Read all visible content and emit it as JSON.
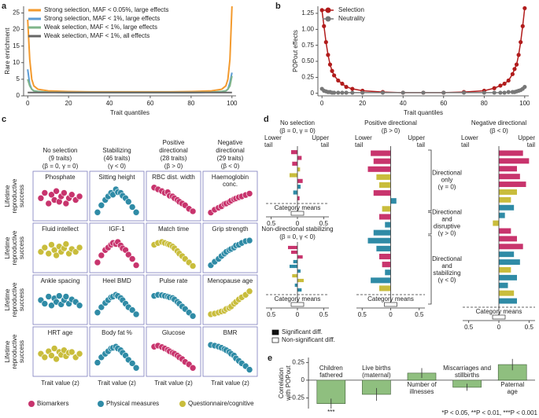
{
  "chart_data": [
    {
      "type": "line",
      "label": "a",
      "x_label": "Trait quantiles",
      "y_label": "Rare enrichment",
      "xlim": [
        -2,
        102
      ],
      "ylim": [
        0,
        27
      ],
      "xticks": [
        0,
        20,
        40,
        60,
        80,
        100
      ],
      "yticks": [
        0,
        5,
        10,
        15,
        20,
        25
      ],
      "legend": "upper left",
      "x": [
        0,
        1,
        2,
        3,
        5,
        10,
        20,
        30,
        40,
        50,
        60,
        70,
        80,
        90,
        95,
        97,
        98,
        99,
        100
      ],
      "series": [
        {
          "name": "Strong selection, MAF < 0.05%, large effects",
          "color": "#f39a2e",
          "values": [
            23,
            11,
            5,
            3,
            2,
            1.5,
            1.3,
            1.2,
            1.2,
            1.2,
            1.2,
            1.2,
            1.3,
            1.5,
            2,
            3,
            5,
            11,
            27
          ]
        },
        {
          "name": "Strong selection, MAF < 1%, large effects",
          "color": "#5b9bd5",
          "values": [
            8,
            3.5,
            2,
            1.5,
            1.3,
            1.1,
            1,
            1,
            1,
            1,
            1,
            1,
            1,
            1.1,
            1.3,
            1.5,
            2,
            4,
            7
          ]
        },
        {
          "name": "Weak selection, MAF < 1%, large effects",
          "color": "#7fb58a",
          "values": [
            5,
            3,
            2,
            1.5,
            1.3,
            1.1,
            1,
            1,
            1,
            1,
            1,
            1,
            1,
            1.1,
            1.3,
            1.5,
            2,
            3,
            6
          ]
        },
        {
          "name": "Weak selection, MAF < 1%, all effects",
          "color": "#666666",
          "values": [
            1,
            1,
            1,
            1,
            1,
            1,
            1,
            1,
            1,
            1,
            1,
            1,
            1,
            1,
            1,
            1,
            1,
            1,
            1
          ]
        }
      ]
    },
    {
      "type": "line",
      "label": "b",
      "markers": true,
      "x_label": "Trait quantiles",
      "y_label": "POPout effects",
      "xlim": [
        -2,
        102
      ],
      "ylim": [
        -0.04,
        1.36
      ],
      "xticks": [
        0,
        20,
        40,
        60,
        80,
        100
      ],
      "yticks": [
        0,
        {
          "value": 0.25,
          "label": "0.25"
        },
        {
          "value": 0.5,
          "label": "0.50"
        },
        {
          "value": 0.75,
          "label": "0.75"
        },
        {
          "value": 1,
          "label": "1.00"
        },
        {
          "value": 1.25,
          "label": "1.25"
        }
      ],
      "legend": "upper left",
      "x": [
        0,
        1,
        2,
        3,
        4,
        5,
        6,
        8,
        10,
        12,
        15,
        20,
        30,
        40,
        50,
        60,
        70,
        80,
        85,
        88,
        90,
        92,
        94,
        95,
        96,
        97,
        98,
        99,
        100
      ],
      "series": [
        {
          "name": "Selection",
          "color": "#b11c1c",
          "values": [
            1.3,
            1.05,
            0.8,
            0.6,
            0.45,
            0.35,
            0.28,
            0.2,
            0.15,
            0.1,
            0.07,
            0.04,
            0.02,
            0.01,
            0.01,
            0.01,
            0.02,
            0.04,
            0.08,
            0.12,
            0.15,
            0.2,
            0.3,
            0.38,
            0.45,
            0.6,
            0.8,
            1.05,
            1.33
          ]
        },
        {
          "name": "Neutrality",
          "color": "#777777",
          "values": [
            0.07,
            0.04,
            0.03,
            0.02,
            0.02,
            0.01,
            0.01,
            0.01,
            0.01,
            0.01,
            0.01,
            0.01,
            0.01,
            0.01,
            0.01,
            0.01,
            0.01,
            0.01,
            0.01,
            0.01,
            0.01,
            0.02,
            0.02,
            0.02,
            0.03,
            0.04,
            0.05,
            0.07,
            0.1
          ]
        }
      ]
    },
    {
      "type": "scatter_grid",
      "label": "c",
      "x_label": "Trait value (z)",
      "row_label": [
        "Lifetime",
        "reproductive",
        "success"
      ],
      "xlim": [
        -2.3,
        2.5
      ],
      "ylim": [
        0,
        1
      ],
      "column_titles": [
        [
          "No selection",
          "(9 traits)",
          "(β = 0, γ = 0)"
        ],
        [
          "Stabilizing",
          "(46 traits)",
          "(γ < 0)"
        ],
        [
          "Positive",
          "directional",
          "(28 traits)",
          "(β > 0)"
        ],
        [
          "Negative",
          "directional",
          "(29 traits)",
          "(β < 0)"
        ]
      ],
      "legend": [
        {
          "name": "Biomarkers",
          "color": "#c8346d"
        },
        {
          "name": "Physical measures",
          "color": "#2f8ba6"
        },
        {
          "name": "Questionnaire/cognitive",
          "color": "#c9bd3c"
        }
      ],
      "x": [
        -1.9,
        -1.5,
        -1.1,
        -0.8,
        -0.5,
        -0.3,
        0,
        0.2,
        0.5,
        0.7,
        1,
        1.3,
        1.7,
        2.1
      ],
      "panels": [
        {
          "title": [
            "Phosphate"
          ],
          "group": 0,
          "y": [
            0.55,
            0.7,
            0.4,
            0.65,
            0.5,
            0.75,
            0.45,
            0.6,
            0.7,
            0.4,
            0.55,
            0.65,
            0.5,
            0.6
          ]
        },
        {
          "title": [
            "Sitting height"
          ],
          "group": 1,
          "y": [
            0.15,
            0.35,
            0.5,
            0.6,
            0.7,
            0.65,
            0.8,
            0.72,
            0.7,
            0.62,
            0.55,
            0.45,
            0.3,
            0.15
          ]
        },
        {
          "title": [
            "RBC dist. width"
          ],
          "group": 0,
          "y": [
            0.85,
            0.8,
            0.75,
            0.7,
            0.72,
            0.62,
            0.6,
            0.55,
            0.5,
            0.45,
            0.4,
            0.35,
            0.25,
            0.18
          ]
        },
        {
          "title": [
            "Haemoglobin",
            "conc."
          ],
          "group": 0,
          "y": [
            0.18,
            0.28,
            0.35,
            0.4,
            0.48,
            0.5,
            0.55,
            0.6,
            0.65,
            0.68,
            0.72,
            0.75,
            0.8,
            0.85
          ]
        },
        {
          "title": [
            "Fluid intellect"
          ],
          "group": 2,
          "y": [
            0.5,
            0.62,
            0.45,
            0.7,
            0.55,
            0.4,
            0.65,
            0.5,
            0.6,
            0.72,
            0.45,
            0.58,
            0.5,
            0.62
          ]
        },
        {
          "title": [
            "IGF-1"
          ],
          "group": 0,
          "y": [
            0.2,
            0.4,
            0.55,
            0.62,
            0.7,
            0.75,
            0.72,
            0.78,
            0.68,
            0.6,
            0.55,
            0.42,
            0.3,
            0.12
          ]
        },
        {
          "title": [
            "Match time"
          ],
          "group": 2,
          "y": [
            0.7,
            0.75,
            0.78,
            0.75,
            0.72,
            0.7,
            0.65,
            0.6,
            0.52,
            0.45,
            0.38,
            0.3,
            0.2,
            0.1
          ]
        },
        {
          "title": [
            "Grip strength"
          ],
          "group": 1,
          "y": [
            0.12,
            0.22,
            0.3,
            0.38,
            0.45,
            0.5,
            0.55,
            0.58,
            0.62,
            0.68,
            0.7,
            0.75,
            0.8,
            0.82
          ]
        },
        {
          "title": [
            "Ankle spacing"
          ],
          "group": 1,
          "y": [
            0.6,
            0.5,
            0.7,
            0.45,
            0.65,
            0.55,
            0.72,
            0.48,
            0.6,
            0.7,
            0.5,
            0.62,
            0.55,
            0.45
          ]
        },
        {
          "title": [
            "Heel BMD"
          ],
          "group": 1,
          "y": [
            0.25,
            0.4,
            0.52,
            0.6,
            0.68,
            0.7,
            0.75,
            0.72,
            0.66,
            0.6,
            0.5,
            0.4,
            0.32,
            0.2
          ]
        },
        {
          "title": [
            "Pulse rate"
          ],
          "group": 1,
          "y": [
            0.72,
            0.75,
            0.74,
            0.72,
            0.7,
            0.68,
            0.66,
            0.62,
            0.55,
            0.5,
            0.42,
            0.35,
            0.25,
            0.15
          ]
        },
        {
          "title": [
            "Menopause age"
          ],
          "group": 2,
          "y": [
            0.2,
            0.22,
            0.25,
            0.28,
            0.3,
            0.35,
            0.38,
            0.42,
            0.5,
            0.55,
            0.62,
            0.68,
            0.75,
            0.85
          ]
        },
        {
          "title": [
            "HRT age"
          ],
          "group": 2,
          "y": [
            0.55,
            0.45,
            0.62,
            0.5,
            0.7,
            0.4,
            0.6,
            0.52,
            0.65,
            0.48,
            0.58,
            0.6,
            0.45,
            0.55
          ]
        },
        {
          "title": [
            "Body fat %"
          ],
          "group": 1,
          "y": [
            0.3,
            0.45,
            0.55,
            0.62,
            0.7,
            0.72,
            0.75,
            0.7,
            0.65,
            0.58,
            0.5,
            0.38,
            0.28,
            0.15
          ]
        },
        {
          "title": [
            "Glucose"
          ],
          "group": 0,
          "y": [
            0.75,
            0.78,
            0.74,
            0.7,
            0.66,
            0.62,
            0.58,
            0.55,
            0.5,
            0.45,
            0.4,
            0.32,
            0.25,
            0.15
          ]
        },
        {
          "title": [
            "BMR"
          ],
          "group": 1,
          "y": [
            0.8,
            0.78,
            0.75,
            0.72,
            0.68,
            0.65,
            0.6,
            0.55,
            0.5,
            0.42,
            0.35,
            0.28,
            0.2,
            0.1
          ]
        }
      ]
    },
    {
      "type": "diverging_bar",
      "label": "d",
      "xlim": [
        -0.6,
        0.6
      ],
      "xticks": [
        {
          "value": -0.5,
          "label": "0.5"
        },
        0,
        0.5
      ],
      "colors": [
        "#c8346d",
        "#2f8ba6",
        "#c9bd3c"
      ],
      "legend": [
        "Significant diff.",
        "Non-significant diff."
      ],
      "brackets": [
        [
          "Directional",
          "only",
          "(γ = 0)"
        ],
        [
          "Directional",
          "and",
          "disruptive",
          "(γ > 0)"
        ],
        [
          "Directional",
          "and",
          "stabilizing",
          "(γ < 0)"
        ]
      ],
      "panels": [
        {
          "title": [
            "No selection",
            "(β = 0, γ = 0)"
          ],
          "tails": [
            [
              "Lower",
              "tail"
            ],
            [
              "Upper",
              "tail"
            ]
          ],
          "means_label": "Category means",
          "values": [
            -0.12,
            0.08,
            -0.1,
            0.05,
            -0.15,
            0.1,
            0.06,
            -0.08,
            0.04
          ],
          "groups": [
            0,
            0,
            0,
            2,
            2,
            0,
            1,
            1,
            0
          ]
        },
        {
          "title": [
            "Non-directional stabilizing",
            "(β = 0, γ < 0)"
          ],
          "means_label": "Category means",
          "values": [
            -0.18,
            -0.12,
            0.1,
            -0.08,
            -0.15,
            0.06,
            -0.1,
            0.12,
            -0.05,
            0.08
          ],
          "groups": [
            0,
            0,
            0,
            1,
            1,
            1,
            2,
            2,
            1,
            1
          ]
        },
        {
          "title": [
            "Positive directional",
            "(β > 0)"
          ],
          "tails": [
            [
              "Lower",
              "tail"
            ],
            [
              "Upper",
              "tail"
            ]
          ],
          "means_label": "Category means",
          "values": [
            -0.35,
            -0.3,
            -0.4,
            -0.25,
            -0.2,
            -0.3,
            0.1,
            -0.15,
            -0.2,
            -0.1,
            -0.3,
            -0.4,
            -0.25,
            -0.2,
            -0.15,
            -0.1,
            -0.35,
            -0.2
          ],
          "groups": [
            0,
            0,
            0,
            2,
            2,
            0,
            1,
            2,
            0,
            1,
            1,
            1,
            1,
            0,
            0,
            1,
            1,
            2
          ]
        },
        {
          "title": [
            "Negative directional",
            "(β < 0)"
          ],
          "tails": [
            [
              "Lower",
              "tail"
            ],
            [
              "Upper",
              "tail"
            ]
          ],
          "means_label": "Category means",
          "values": [
            0.4,
            0.5,
            0.3,
            0.35,
            0.45,
            0.3,
            0.2,
            0.25,
            0.1,
            -0.1,
            0.2,
            0.3,
            0.4,
            0.25,
            0.35,
            0.2,
            0.3,
            0.15,
            0.25,
            0.3
          ],
          "groups": [
            0,
            0,
            0,
            0,
            0,
            2,
            2,
            1,
            1,
            2,
            0,
            0,
            0,
            1,
            1,
            2,
            1,
            1,
            2,
            1
          ]
        }
      ]
    },
    {
      "type": "bar",
      "label": "e",
      "y_label": [
        "Correlation",
        "with POPout"
      ],
      "ylim": [
        -0.4,
        0.32
      ],
      "yticks": [
        {
          "value": -0.25,
          "label": "−0.25"
        },
        0,
        0.25
      ],
      "color": "#8fbf7f",
      "categories": [
        [
          "Children",
          "fathered"
        ],
        [
          "Live births",
          "(maternal)"
        ],
        [
          "Number of",
          "illnesses"
        ],
        [
          "Miscarriages and",
          "stillbirths"
        ],
        [
          "Paternal",
          "age"
        ]
      ],
      "values": [
        -0.33,
        -0.2,
        0.1,
        -0.1,
        0.22
      ],
      "errors": [
        0.07,
        0.09,
        0.07,
        0.05,
        0.08
      ],
      "significance": [
        "***",
        null,
        null,
        null,
        null
      ],
      "note": "*P < 0.05, **P < 0.01, ***P < 0.001"
    }
  ]
}
